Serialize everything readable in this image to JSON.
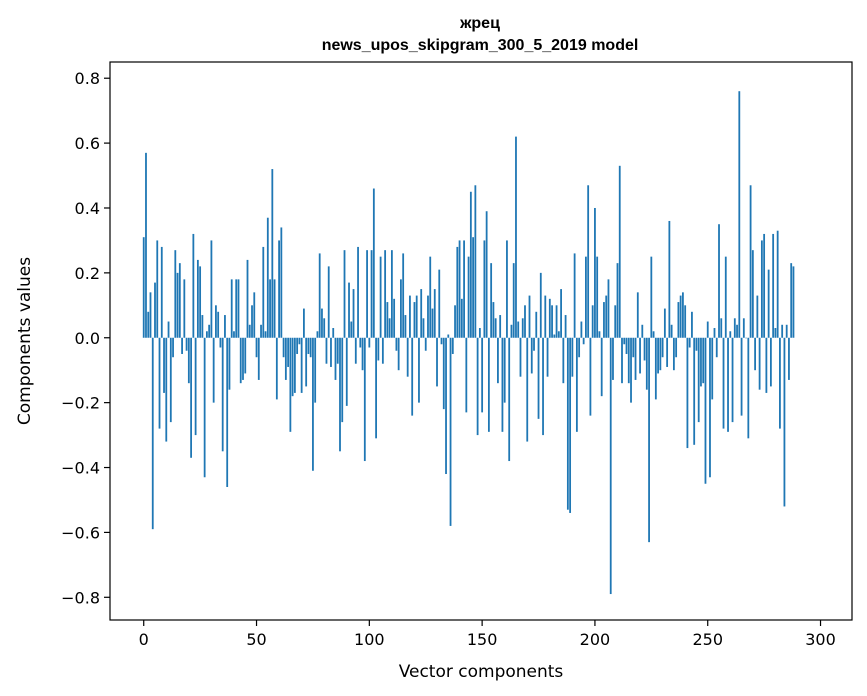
{
  "chart_data": {
    "type": "bar",
    "title": "жрец",
    "subtitle": "news_upos_skipgram_300_5_2019 model",
    "xlabel": "Vector components",
    "ylabel": "Components values",
    "xlim": [
      -14.95,
      313.95
    ],
    "ylim": [
      -0.87,
      0.85
    ],
    "xticks": [
      0,
      50,
      100,
      150,
      200,
      250,
      300
    ],
    "yticks": [
      -0.8,
      -0.6,
      -0.4,
      -0.2,
      0.0,
      0.2,
      0.4,
      0.6,
      0.8
    ],
    "ytick_labels": [
      "−0.8",
      "−0.6",
      "−0.4",
      "−0.2",
      "0.0",
      "0.2",
      "0.4",
      "0.6",
      "0.8"
    ],
    "grid": false,
    "legend": "none",
    "bar_color": "#1f77b4",
    "values": [
      0.31,
      0.57,
      0.08,
      0.14,
      -0.59,
      0.17,
      0.3,
      -0.28,
      0.28,
      -0.17,
      -0.32,
      0.05,
      -0.26,
      -0.06,
      0.27,
      0.2,
      0.23,
      -0.05,
      0.18,
      -0.04,
      -0.14,
      -0.37,
      0.32,
      -0.3,
      0.24,
      0.22,
      0.07,
      -0.43,
      0.02,
      0.04,
      0.3,
      -0.2,
      0.1,
      0.08,
      -0.03,
      -0.35,
      0.07,
      -0.46,
      -0.16,
      0.18,
      0.02,
      0.18,
      0.18,
      -0.14,
      -0.13,
      -0.11,
      0.24,
      0.04,
      0.1,
      0.14,
      -0.06,
      -0.13,
      0.04,
      0.28,
      0.02,
      0.37,
      0.18,
      0.52,
      0.18,
      -0.19,
      0.3,
      0.34,
      -0.06,
      -0.13,
      -0.09,
      -0.29,
      -0.18,
      -0.17,
      -0.05,
      -0.02,
      -0.17,
      0.09,
      -0.15,
      -0.05,
      -0.06,
      -0.41,
      -0.2,
      0.02,
      0.26,
      0.09,
      0.06,
      -0.08,
      0.22,
      -0.09,
      0.03,
      -0.13,
      -0.08,
      -0.35,
      -0.26,
      0.27,
      -0.21,
      0.17,
      0.05,
      0.15,
      -0.08,
      0.28,
      -0.03,
      -0.1,
      -0.38,
      0.27,
      -0.03,
      0.27,
      0.46,
      -0.31,
      -0.07,
      0.25,
      -0.08,
      0.27,
      0.11,
      0.06,
      0.27,
      0.12,
      -0.04,
      -0.1,
      0.18,
      0.26,
      0.07,
      -0.12,
      0.13,
      -0.24,
      0.11,
      0.13,
      -0.2,
      0.15,
      0.06,
      -0.04,
      0.13,
      0.25,
      0.09,
      0.15,
      -0.15,
      0.21,
      -0.02,
      -0.22,
      -0.42,
      0.01,
      -0.58,
      -0.05,
      0.1,
      0.28,
      0.3,
      0.12,
      0.3,
      -0.23,
      0.25,
      0.45,
      0.31,
      0.47,
      -0.3,
      0.03,
      -0.23,
      0.3,
      0.39,
      -0.29,
      0.23,
      0.11,
      0.06,
      -0.14,
      0.07,
      -0.29,
      -0.2,
      0.3,
      -0.38,
      0.04,
      0.23,
      0.62,
      0.05,
      -0.12,
      0.06,
      0.1,
      -0.32,
      0.13,
      -0.11,
      -0.04,
      0.08,
      -0.25,
      0.2,
      -0.3,
      0.13,
      -0.12,
      0.12,
      0.1,
      0.01,
      0.1,
      0.02,
      0.15,
      -0.14,
      0.07,
      -0.53,
      -0.54,
      -0.12,
      0.26,
      -0.29,
      -0.06,
      0.05,
      -0.02,
      0.25,
      0.47,
      -0.24,
      0.1,
      0.4,
      0.25,
      0.02,
      -0.18,
      0.11,
      0.13,
      0.18,
      -0.79,
      -0.13,
      0.1,
      0.23,
      0.53,
      -0.14,
      -0.02,
      -0.05,
      -0.14,
      -0.2,
      -0.06,
      -0.13,
      0.14,
      -0.11,
      0.04,
      -0.07,
      -0.16,
      -0.63,
      0.25,
      0.02,
      -0.19,
      -0.11,
      -0.1,
      -0.06,
      0.09,
      -0.09,
      0.36,
      0.04,
      -0.1,
      -0.06,
      0.11,
      0.13,
      0.14,
      0.1,
      -0.34,
      -0.03,
      0.08,
      -0.33,
      -0.04,
      -0.26,
      -0.15,
      -0.14,
      -0.45,
      0.05,
      -0.43,
      -0.19,
      0.03,
      -0.06,
      0.35,
      0.06,
      -0.28,
      0.25,
      -0.29,
      0.02,
      -0.26,
      0.06,
      0.04,
      0.76,
      -0.24,
      0.06,
      0.0,
      -0.31,
      0.47,
      0.27,
      -0.1,
      0.13,
      -0.16,
      0.3,
      0.32,
      -0.17,
      0.21,
      -0.15,
      0.32,
      0.03,
      0.33,
      -0.28,
      0.04,
      -0.52,
      0.04,
      -0.13,
      0.23,
      0.22
    ]
  }
}
